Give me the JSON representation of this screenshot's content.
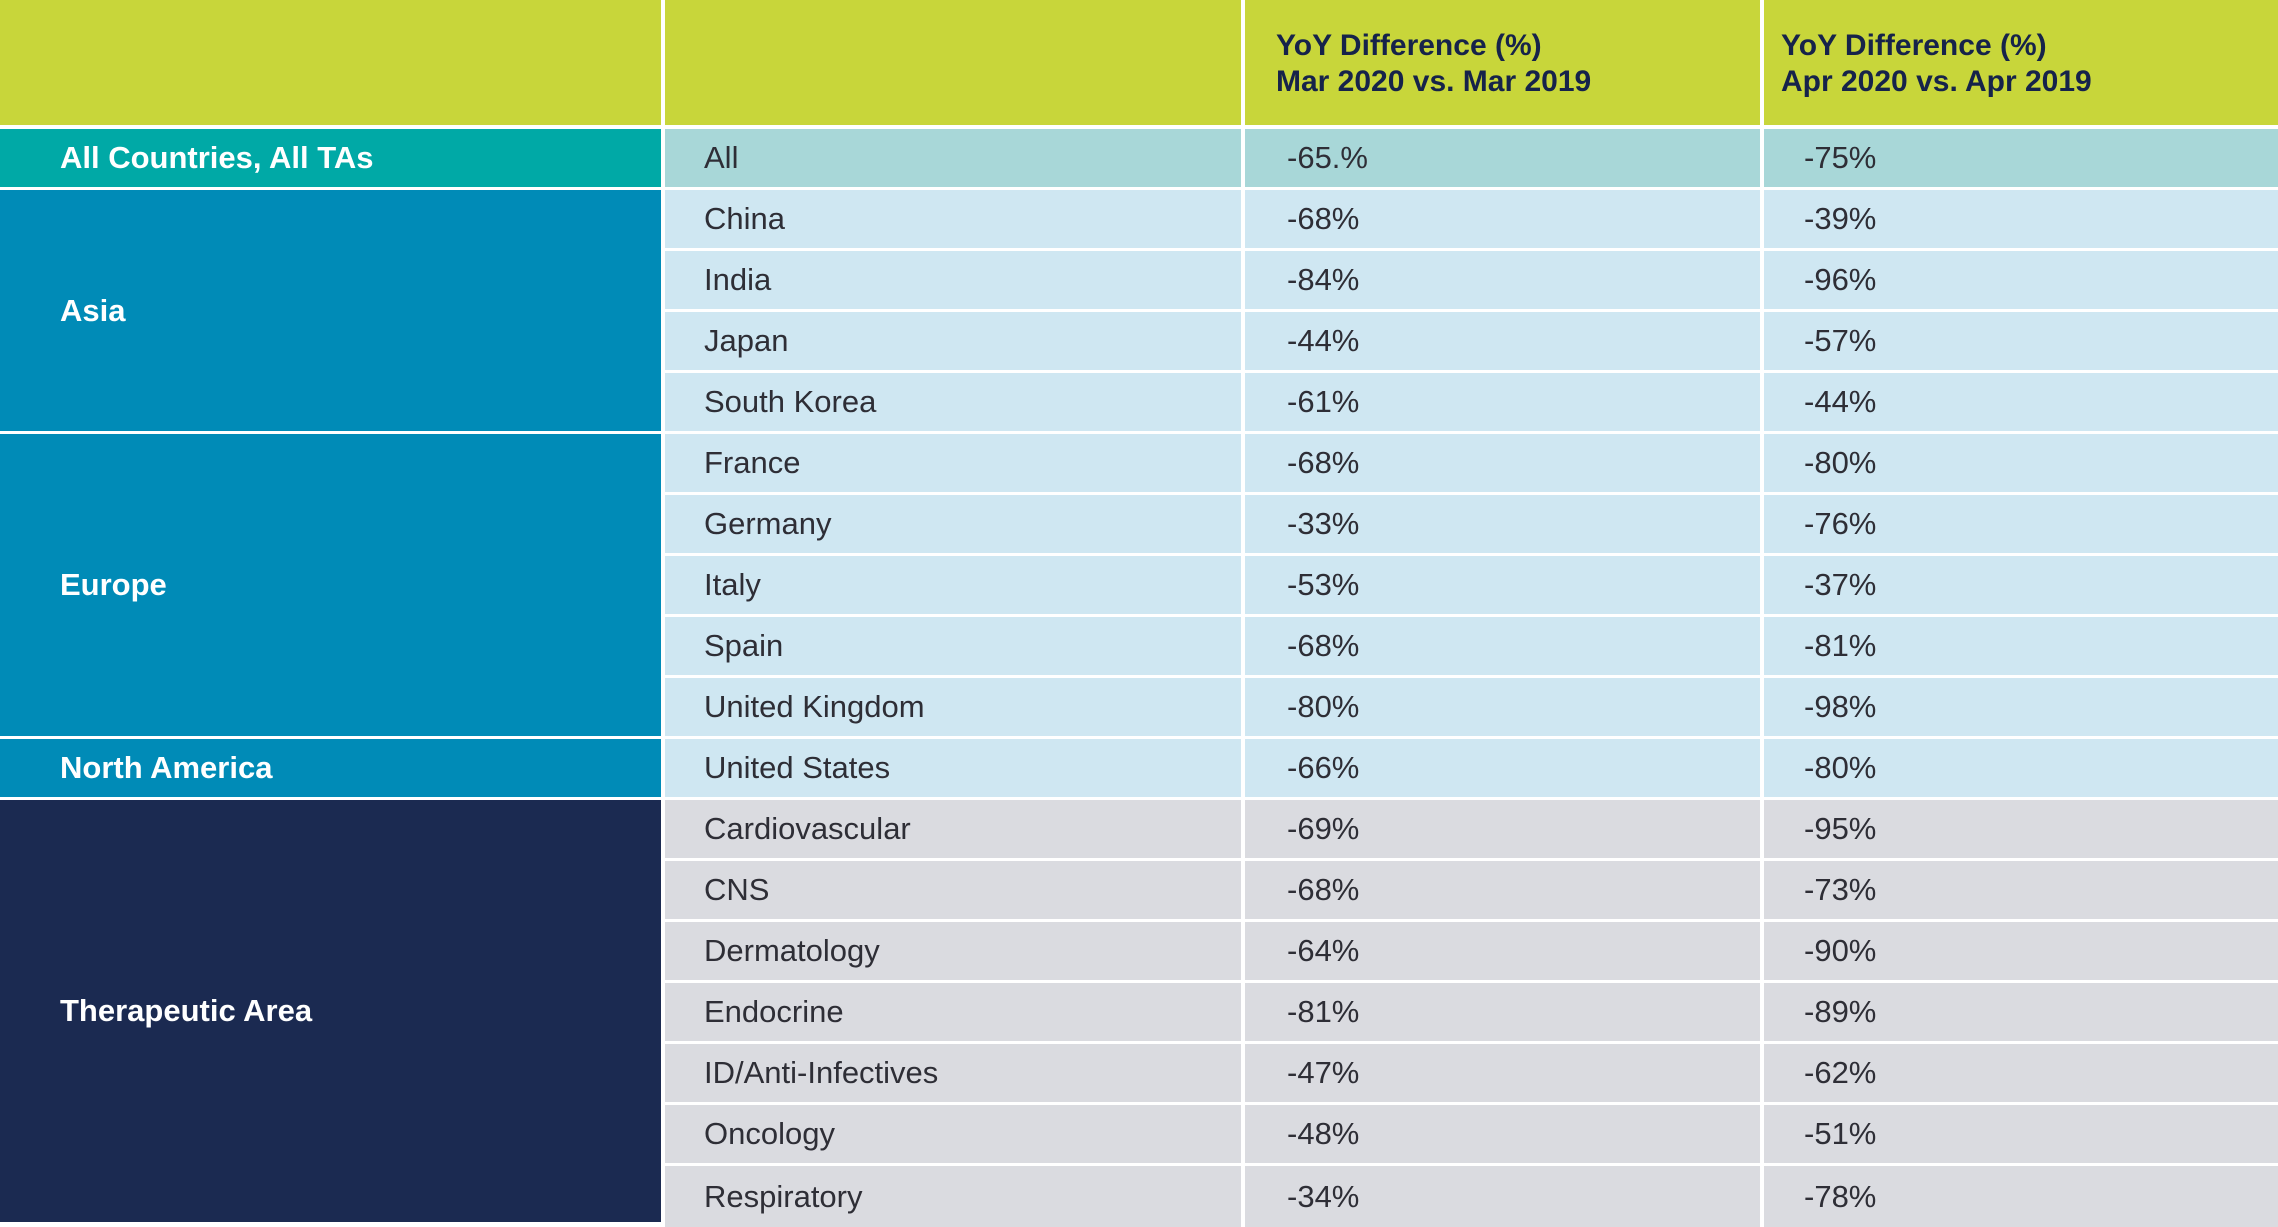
{
  "colors": {
    "header": "#c8d63a",
    "header_text": "#16234a",
    "all_group": "#00a9a6",
    "all_row": "#a8d7d8",
    "region_group": "#008bb7",
    "region_row": "#cfe7f2",
    "ta_group": "#1b2a51",
    "ta_row": "#dadbe0",
    "divider": "#ffffff"
  },
  "chart_data": {
    "type": "table",
    "columns": [
      "",
      "",
      "YoY Difference (%)\nMar 2020 vs. Mar 2019",
      "YoY Difference (%)\nApr 2020 vs. Apr 2019"
    ],
    "header": {
      "col3_line1": "YoY Difference (%)",
      "col3_line2": "Mar 2020 vs. Mar 2019",
      "col4_line1": "YoY Difference (%)",
      "col4_line2": "Apr 2020 vs. Apr 2019"
    },
    "groups": [
      {
        "name": "All Countries, All TAs",
        "style": "all",
        "rows": [
          {
            "label": "All",
            "mar": "-65.%",
            "apr": "-75%"
          }
        ]
      },
      {
        "name": "Asia",
        "style": "region",
        "rows": [
          {
            "label": "China",
            "mar": "-68%",
            "apr": "-39%"
          },
          {
            "label": "India",
            "mar": "-84%",
            "apr": "-96%"
          },
          {
            "label": "Japan",
            "mar": "-44%",
            "apr": "-57%"
          },
          {
            "label": "South Korea",
            "mar": "-61%",
            "apr": "-44%"
          }
        ]
      },
      {
        "name": "Europe",
        "style": "region",
        "rows": [
          {
            "label": "France",
            "mar": "-68%",
            "apr": "-80%"
          },
          {
            "label": "Germany",
            "mar": "-33%",
            "apr": "-76%"
          },
          {
            "label": "Italy",
            "mar": "-53%",
            "apr": "-37%"
          },
          {
            "label": "Spain",
            "mar": "-68%",
            "apr": "-81%"
          },
          {
            "label": "United Kingdom",
            "mar": "-80%",
            "apr": "-98%"
          }
        ]
      },
      {
        "name": "North America",
        "style": "region",
        "rows": [
          {
            "label": "United States",
            "mar": "-66%",
            "apr": "-80%"
          }
        ]
      },
      {
        "name": "Therapeutic Area",
        "style": "ta",
        "rows": [
          {
            "label": "Cardiovascular",
            "mar": "-69%",
            "apr": "-95%"
          },
          {
            "label": "CNS",
            "mar": "-68%",
            "apr": "-73%"
          },
          {
            "label": "Dermatology",
            "mar": "-64%",
            "apr": "-90%"
          },
          {
            "label": "Endocrine",
            "mar": "-81%",
            "apr": "-89%"
          },
          {
            "label": "ID/Anti-Infectives",
            "mar": "-47%",
            "apr": "-62%"
          },
          {
            "label": "Oncology",
            "mar": "-48%",
            "apr": "-51%"
          },
          {
            "label": "Respiratory",
            "mar": "-34%",
            "apr": "-78%"
          }
        ]
      }
    ]
  }
}
